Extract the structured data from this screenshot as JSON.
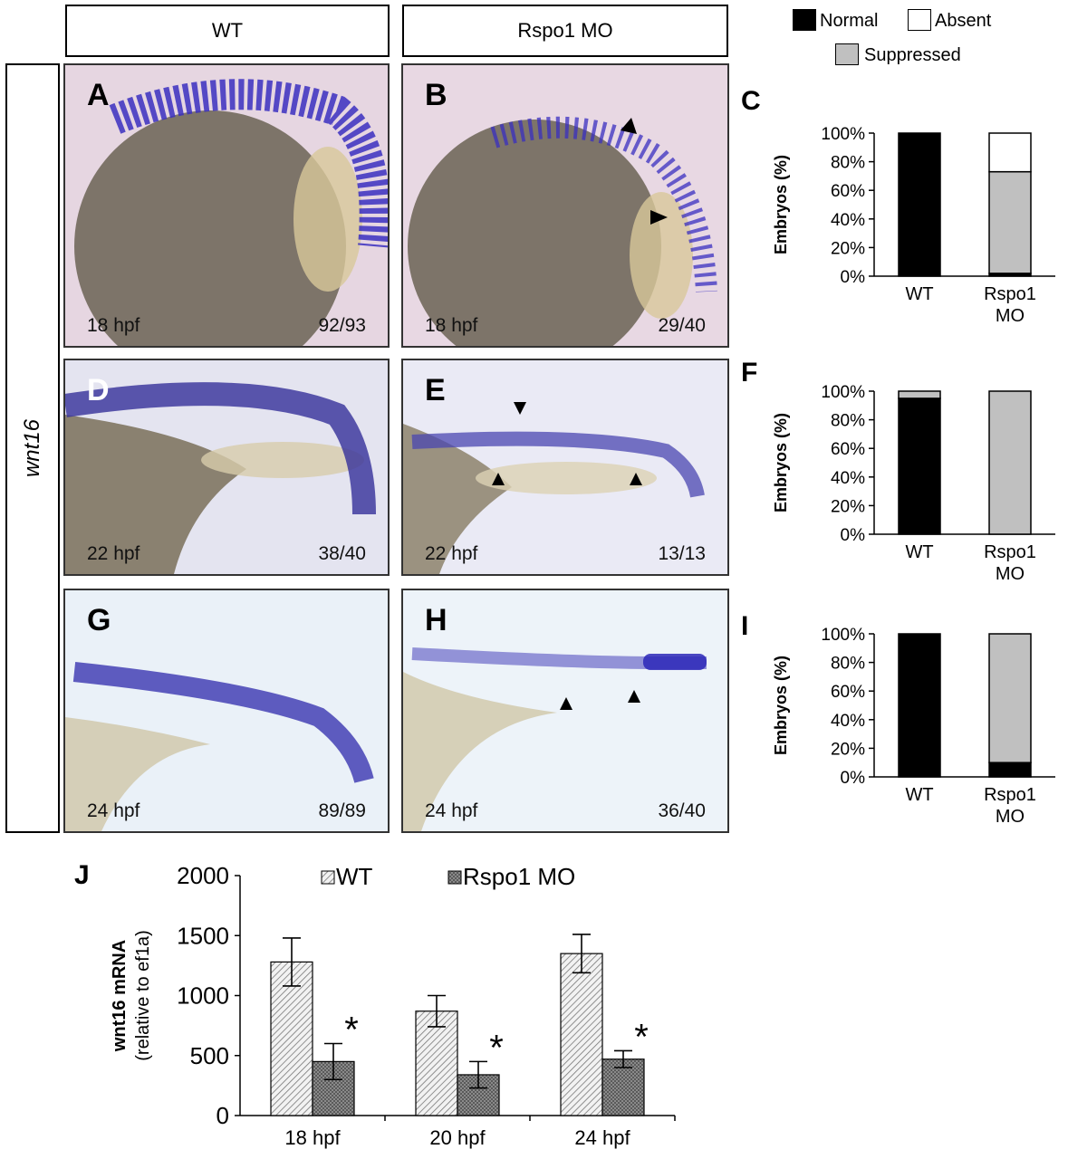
{
  "headers": {
    "wt": "WT",
    "mo": "Rspo1 MO"
  },
  "side_label": "wnt16",
  "legend": {
    "normal": {
      "label": "Normal",
      "color": "#000000"
    },
    "absent": {
      "label": "Absent",
      "color": "#ffffff"
    },
    "suppressed": {
      "label": "Suppressed",
      "color": "#c0c0c0"
    }
  },
  "panels": [
    {
      "letter": "A",
      "stage": "18 hpf",
      "count": "92/93"
    },
    {
      "letter": "B",
      "stage": "18 hpf",
      "count": "29/40"
    },
    {
      "letter": "D",
      "stage": "22 hpf",
      "count": "38/40"
    },
    {
      "letter": "E",
      "stage": "22 hpf",
      "count": "13/13"
    },
    {
      "letter": "G",
      "stage": "24 hpf",
      "count": "89/89"
    },
    {
      "letter": "H",
      "stage": "24 hpf",
      "count": "36/40"
    }
  ],
  "chart_data": [
    {
      "id": "C",
      "type": "bar",
      "stacked": true,
      "letter": "C",
      "ylabel": "Embryos (%)",
      "yticks": [
        "0%",
        "20%",
        "40%",
        "60%",
        "80%",
        "100%"
      ],
      "ylim": [
        0,
        100
      ],
      "categories": [
        "WT",
        "Rspo1 MO"
      ],
      "series": [
        {
          "name": "Normal",
          "values": [
            100,
            2
          ]
        },
        {
          "name": "Suppressed",
          "values": [
            0,
            71
          ]
        },
        {
          "name": "Absent",
          "values": [
            0,
            27
          ]
        }
      ]
    },
    {
      "id": "F",
      "type": "bar",
      "stacked": true,
      "letter": "F",
      "ylabel": "Embryos (%)",
      "yticks": [
        "0%",
        "20%",
        "40%",
        "60%",
        "80%",
        "100%"
      ],
      "ylim": [
        0,
        100
      ],
      "categories": [
        "WT",
        "Rspo1 MO"
      ],
      "series": [
        {
          "name": "Normal",
          "values": [
            95,
            0
          ]
        },
        {
          "name": "Suppressed",
          "values": [
            5,
            100
          ]
        },
        {
          "name": "Absent",
          "values": [
            0,
            0
          ]
        }
      ]
    },
    {
      "id": "I",
      "type": "bar",
      "stacked": true,
      "letter": "I",
      "ylabel": "Embryos (%)",
      "yticks": [
        "0%",
        "20%",
        "40%",
        "60%",
        "80%",
        "100%"
      ],
      "ylim": [
        0,
        100
      ],
      "categories": [
        "WT",
        "Rspo1 MO"
      ],
      "series": [
        {
          "name": "Normal",
          "values": [
            100,
            10
          ]
        },
        {
          "name": "Suppressed",
          "values": [
            0,
            90
          ]
        },
        {
          "name": "Absent",
          "values": [
            0,
            0
          ]
        }
      ]
    },
    {
      "id": "J",
      "type": "bar",
      "letter": "J",
      "ylabel": "wnt16 mRNA",
      "ylabel2": "(relative to ef1a)",
      "yticks": [
        "0",
        "500",
        "1000",
        "1500",
        "2000"
      ],
      "ylim": [
        0,
        2000
      ],
      "categories": [
        "18 hpf",
        "20 hpf",
        "24 hpf"
      ],
      "series": [
        {
          "name": "WT",
          "values": [
            1280,
            870,
            1350
          ],
          "errors": [
            200,
            130,
            160
          ]
        },
        {
          "name": "Rspo1 MO",
          "values": [
            450,
            340,
            470
          ],
          "errors": [
            150,
            110,
            70
          ]
        }
      ],
      "significance": [
        "*",
        "*",
        "*"
      ]
    }
  ]
}
